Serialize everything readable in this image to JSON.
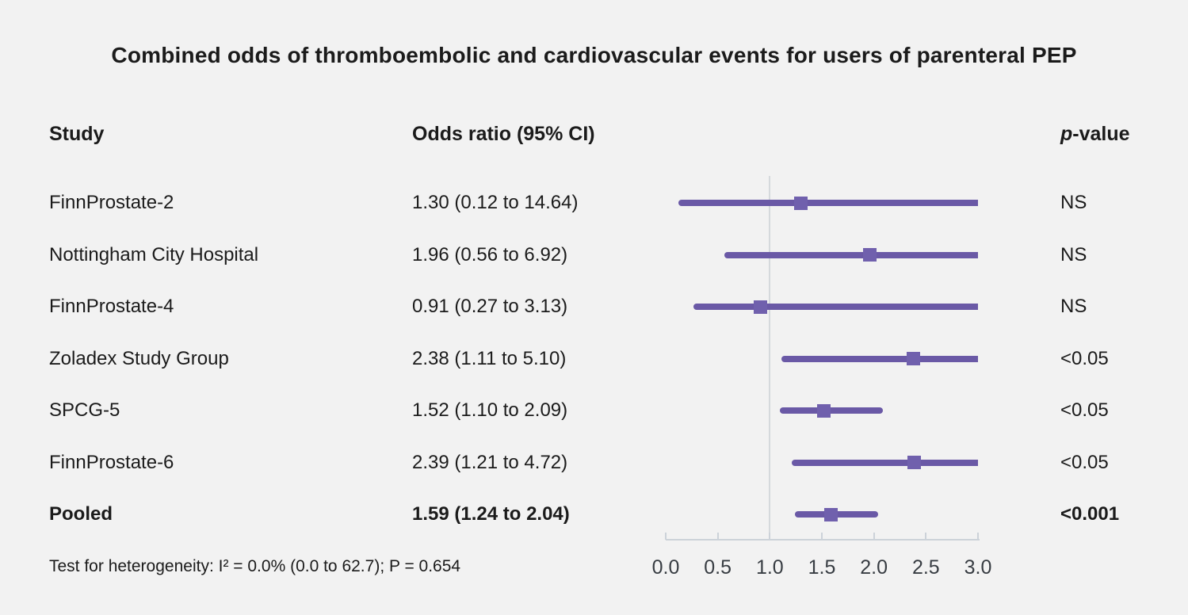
{
  "title": "Combined odds of thromboembolic and cardiovascular events for users of parenteral PEP",
  "columns": {
    "study": "Study",
    "odds_ratio": "Odds ratio (95% CI)",
    "p_italic": "p",
    "p_rest": "-value"
  },
  "footnote": "Test for heterogeneity: I² = 0.0% (0.0 to 62.7); P = 0.654",
  "colors": {
    "background": "#f2f2f2",
    "bar": "#6a59a6",
    "marker": "#7060ad",
    "axis": "#ccd2d9",
    "reference_line": "#d5d9dc",
    "text": "#1b1b1b"
  },
  "chart_data": {
    "type": "forest",
    "title": "Combined odds of thromboembolic and cardiovascular events for users of parenteral PEP",
    "xlabel": "",
    "axis": {
      "min": 0.0,
      "max": 3.0,
      "ticks": [
        "0.0",
        "0.5",
        "1.0",
        "1.5",
        "2.0",
        "2.5",
        "3.0"
      ],
      "reference_value": 1.0,
      "clamped_at_max": true
    },
    "studies": [
      {
        "study": "FinnProstate-2",
        "or": 1.3,
        "ci_lo": 0.12,
        "ci_hi": 14.64,
        "or_label": "1.30 (0.12 to 14.64)",
        "p": "NS",
        "bold": false
      },
      {
        "study": "Nottingham City Hospital",
        "or": 1.96,
        "ci_lo": 0.56,
        "ci_hi": 6.92,
        "or_label": "1.96 (0.56 to 6.92)",
        "p": "NS",
        "bold": false
      },
      {
        "study": "FinnProstate-4",
        "or": 0.91,
        "ci_lo": 0.27,
        "ci_hi": 3.13,
        "or_label": "0.91 (0.27 to 3.13)",
        "p": "NS",
        "bold": false
      },
      {
        "study": "Zoladex Study Group",
        "or": 2.38,
        "ci_lo": 1.11,
        "ci_hi": 5.1,
        "or_label": "2.38 (1.11 to 5.10)",
        "p": "<0.05",
        "bold": false
      },
      {
        "study": "SPCG-5",
        "or": 1.52,
        "ci_lo": 1.1,
        "ci_hi": 2.09,
        "or_label": "1.52 (1.10 to 2.09)",
        "p": "<0.05",
        "bold": false
      },
      {
        "study": "FinnProstate-6",
        "or": 2.39,
        "ci_lo": 1.21,
        "ci_hi": 4.72,
        "or_label": "2.39 (1.21 to 4.72)",
        "p": "<0.05",
        "bold": false
      },
      {
        "study": "Pooled",
        "or": 1.59,
        "ci_lo": 1.24,
        "ci_hi": 2.04,
        "or_label": "1.59 (1.24 to 2.04)",
        "p": "<0.001",
        "bold": true
      }
    ]
  }
}
